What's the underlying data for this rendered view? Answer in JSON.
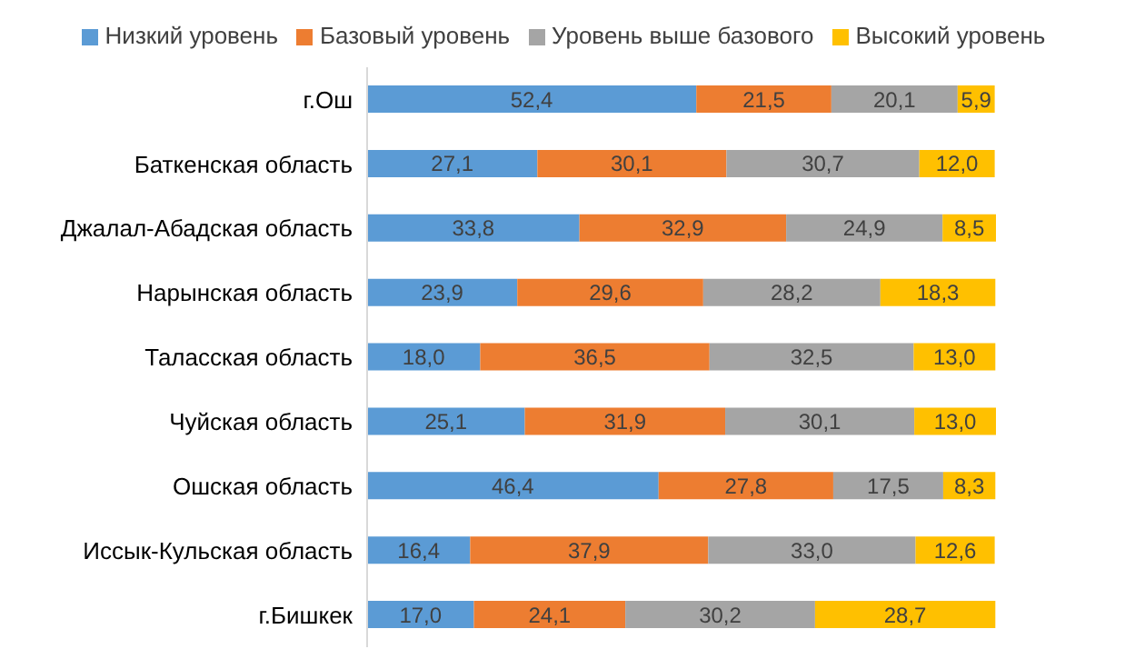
{
  "chart_data": {
    "type": "bar",
    "orientation": "horizontal",
    "stacked": true,
    "legend": "top",
    "grid": false,
    "categories": [
      "г.Ош",
      "Баткенская область",
      "Джалал-Абадская область",
      "Нарынская область",
      "Таласская область",
      "Чуйская область",
      "Ошская область",
      "Иссык-Кульская область",
      "г.Бишкек"
    ],
    "series": [
      {
        "name": "Низкий уровень",
        "color": "#5b9bd5",
        "values": [
          52.4,
          27.1,
          33.8,
          23.9,
          18.0,
          25.1,
          46.4,
          16.4,
          17.0
        ],
        "value_labels": [
          "52,4",
          "27,1",
          "33,8",
          "23,9",
          "18,0",
          "25,1",
          "46,4",
          "16,4",
          "17,0"
        ]
      },
      {
        "name": "Базовый уровень",
        "color": "#ed7d31",
        "values": [
          21.5,
          30.1,
          32.9,
          29.6,
          36.5,
          31.9,
          27.8,
          37.9,
          24.1
        ],
        "value_labels": [
          "21,5",
          "30,1",
          "32,9",
          "29,6",
          "36,5",
          "31,9",
          "27,8",
          "37,9",
          "24,1"
        ]
      },
      {
        "name": "Уровень выше базового",
        "color": "#a5a5a5",
        "values": [
          20.1,
          30.7,
          24.9,
          28.2,
          32.5,
          30.1,
          17.5,
          33.0,
          30.2
        ],
        "value_labels": [
          "20,1",
          "30,7",
          "24,9",
          "28,2",
          "32,5",
          "30,1",
          "17,5",
          "33,0",
          "30,2"
        ]
      },
      {
        "name": "Высокий уровень",
        "color": "#ffc000",
        "values": [
          5.9,
          12.0,
          8.5,
          18.3,
          13.0,
          13.0,
          8.3,
          12.6,
          28.7
        ],
        "value_labels": [
          "5,9",
          "12,0",
          "8,5",
          "18,3",
          "13,0",
          "13,0",
          "8,3",
          "12,6",
          "28,7"
        ]
      }
    ]
  }
}
